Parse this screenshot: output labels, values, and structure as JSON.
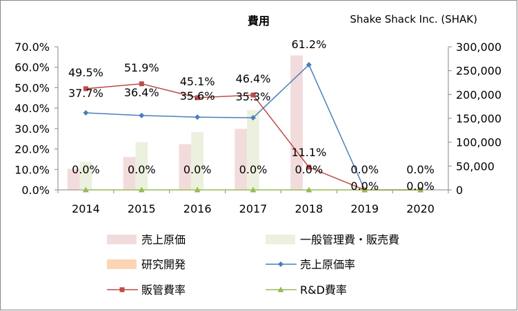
{
  "chart_data": {
    "type": "bar+line",
    "title": "費用",
    "company": "Shake Shack Inc. (SHAK)",
    "categories": [
      "2014",
      "2015",
      "2016",
      "2017",
      "2018",
      "2019",
      "2020"
    ],
    "y_left": {
      "min": 0,
      "max": 0.7,
      "step": 0.1,
      "tick_labels": [
        "0.0%",
        "10.0%",
        "20.0%",
        "30.0%",
        "40.0%",
        "50.0%",
        "60.0%",
        "70.0%"
      ]
    },
    "y_right": {
      "min": 0,
      "max": 300000,
      "step": 50000,
      "tick_labels": [
        "0",
        "50,000",
        "100,000",
        "150,000",
        "200,000",
        "250,000",
        "300,000"
      ]
    },
    "bar_series": [
      {
        "name": "売上原価",
        "axis": "right",
        "color": "#f2dcdb",
        "values": [
          44000,
          69000,
          96000,
          128000,
          282000,
          0,
          0
        ]
      },
      {
        "name": "一般管理費・販売費",
        "axis": "right",
        "color": "#ebf1de",
        "values": [
          59000,
          100000,
          121000,
          167000,
          0,
          0,
          0
        ]
      },
      {
        "name": "研究開発",
        "axis": "right",
        "color": "#fcd5b5",
        "values": [
          0,
          0,
          0,
          0,
          0,
          0,
          0
        ]
      }
    ],
    "line_series": [
      {
        "name": "売上原価率",
        "axis": "left",
        "color": "#4a7ebb",
        "marker": "diamond",
        "values": [
          0.377,
          0.364,
          0.356,
          0.353,
          0.612,
          0.0,
          0.0
        ],
        "labels": [
          "37.7%",
          "36.4%",
          "35.6%",
          "35.3%",
          "61.2%",
          "0.0%",
          "0.0%"
        ]
      },
      {
        "name": "販管費率",
        "axis": "left",
        "color": "#be4b48",
        "marker": "square",
        "values": [
          0.495,
          0.519,
          0.451,
          0.464,
          0.111,
          0.0,
          0.0
        ],
        "labels": [
          "49.5%",
          "51.9%",
          "45.1%",
          "46.4%",
          "11.1%",
          "0.0%",
          "0.0%"
        ]
      },
      {
        "name": "R&D費率",
        "axis": "left",
        "color": "#98b954",
        "marker": "triangle",
        "values": [
          0.0,
          0.0,
          0.0,
          0.0,
          0.0,
          0.0,
          0.0
        ],
        "labels": [
          "0.0%",
          "0.0%",
          "0.0%",
          "0.0%",
          "0.0%",
          "",
          ""
        ]
      }
    ],
    "legend": {
      "position": "bottom",
      "items": [
        "売上原価",
        "一般管理費・販売費",
        "研究開発",
        "売上原価率",
        "販管費率",
        "R&D費率"
      ]
    }
  }
}
